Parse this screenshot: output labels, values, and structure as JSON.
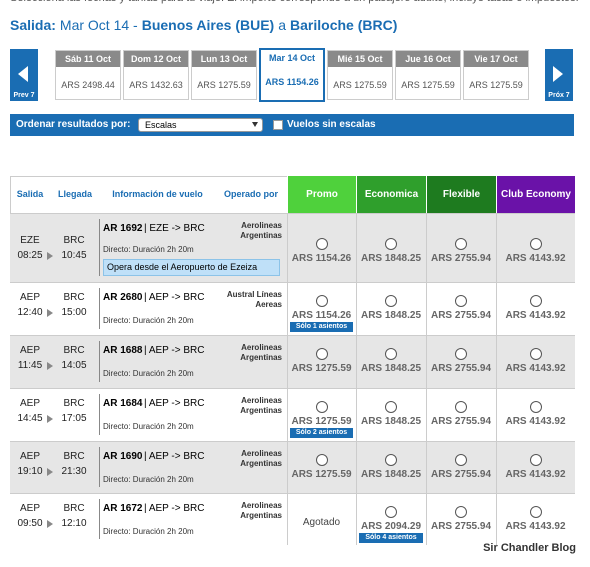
{
  "header": {
    "notice": "Selecciona las fechas y tarifas para tu viaje. El importe corresponde a un pasajero adulto, incluye tasas e impuestos.",
    "label": "Salida:",
    "date": "Mar Oct 14 -",
    "origin": "Buenos Aires (BUE)",
    "to": "a",
    "destination": "Bariloche (BRC)"
  },
  "date_strip": {
    "prev": "Prev 7",
    "next": "Próx 7",
    "dates": [
      {
        "day": "Sáb 11 Oct",
        "price": "ARS 2498.44"
      },
      {
        "day": "Dom 12 Oct",
        "price": "ARS 1432.63"
      },
      {
        "day": "Lun 13 Oct",
        "price": "ARS 1275.59"
      },
      {
        "day": "Mar 14 Oct",
        "price": "ARS 1154.26",
        "selected": true
      },
      {
        "day": "Mié 15 Oct",
        "price": "ARS 1275.59"
      },
      {
        "day": "Jue 16 Oct",
        "price": "ARS 1275.59"
      },
      {
        "day": "Vie 17 Oct",
        "price": "ARS 1275.59"
      }
    ]
  },
  "filter": {
    "label": "Ordenar resultados por:",
    "select": "Escalas",
    "checkbox": "Vuelos sin escalas"
  },
  "table": {
    "columns": [
      "Salida",
      "Llegada",
      "Información de vuelo",
      "Operado por"
    ],
    "fares": [
      {
        "name": "Promo",
        "color": "#4fd13c"
      },
      {
        "name": "Economica",
        "color": "#2f9f2c"
      },
      {
        "name": "Flexible",
        "color": "#1e7b1f"
      },
      {
        "name": "Club Economy",
        "color": "#6a12a8"
      }
    ],
    "flights": [
      {
        "dep": "EZE",
        "dep_time": "08:25",
        "arr": "BRC",
        "arr_time": "10:45",
        "flight": "AR 1692",
        "route": "| EZE -> BRC",
        "duration": "Directo: Duración 2h 20m",
        "operator": "Aerolineas Argentinas",
        "note": "Opera desde el Aeropuerto de Ezeiza",
        "fares": [
          {
            "price": "ARS 1154.26"
          },
          {
            "price": "ARS 1848.25"
          },
          {
            "price": "ARS 2755.94"
          },
          {
            "price": "ARS 4143.92"
          }
        ]
      },
      {
        "dep": "AEP",
        "dep_time": "12:40",
        "arr": "BRC",
        "arr_time": "15:00",
        "flight": "AR 2680",
        "route": "| AEP -> BRC",
        "duration": "Directo: Duración 2h 20m",
        "operator": "Austral Líneas Aereas",
        "fares": [
          {
            "price": "ARS 1154.26",
            "tag": "Sólo 1 asientos"
          },
          {
            "price": "ARS 1848.25"
          },
          {
            "price": "ARS 2755.94"
          },
          {
            "price": "ARS 4143.92"
          }
        ]
      },
      {
        "dep": "AEP",
        "dep_time": "11:45",
        "arr": "BRC",
        "arr_time": "14:05",
        "flight": "AR 1688",
        "route": "| AEP -> BRC",
        "duration": "Directo: Duración 2h 20m",
        "operator": "Aerolineas Argentinas",
        "fares": [
          {
            "price": "ARS 1275.59"
          },
          {
            "price": "ARS 1848.25"
          },
          {
            "price": "ARS 2755.94"
          },
          {
            "price": "ARS 4143.92"
          }
        ]
      },
      {
        "dep": "AEP",
        "dep_time": "14:45",
        "arr": "BRC",
        "arr_time": "17:05",
        "flight": "AR 1684",
        "route": "| AEP -> BRC",
        "duration": "Directo: Duración 2h 20m",
        "operator": "Aerolineas Argentinas",
        "fares": [
          {
            "price": "ARS 1275.59",
            "tag": "Sólo 2 asientos"
          },
          {
            "price": "ARS 1848.25"
          },
          {
            "price": "ARS 2755.94"
          },
          {
            "price": "ARS 4143.92"
          }
        ]
      },
      {
        "dep": "AEP",
        "dep_time": "19:10",
        "arr": "BRC",
        "arr_time": "21:30",
        "flight": "AR 1690",
        "route": "| AEP -> BRC",
        "duration": "Directo: Duración 2h 20m",
        "operator": "Aerolineas Argentinas",
        "fares": [
          {
            "price": "ARS 1275.59"
          },
          {
            "price": "ARS 1848.25"
          },
          {
            "price": "ARS 2755.94"
          },
          {
            "price": "ARS 4143.92"
          }
        ]
      },
      {
        "dep": "AEP",
        "dep_time": "09:50",
        "arr": "BRC",
        "arr_time": "12:10",
        "flight": "AR 1672",
        "route": "| AEP -> BRC",
        "duration": "Directo: Duración 2h 20m",
        "operator": "Aerolineas Argentinas",
        "fares": [
          {
            "soldout": "Agotado"
          },
          {
            "price": "ARS 2094.29",
            "tag": "Sólo 4 asientos"
          },
          {
            "price": "ARS 2755.94"
          },
          {
            "price": "ARS 4143.92"
          }
        ]
      }
    ]
  },
  "footer": {
    "watermark": "Sir Chandler Blog"
  }
}
